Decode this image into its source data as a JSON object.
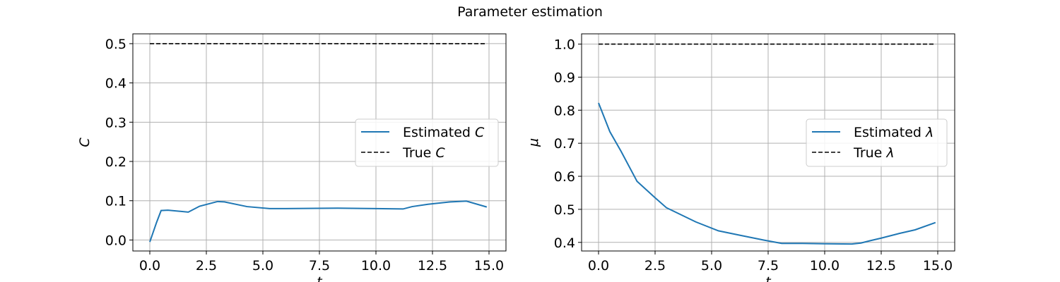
{
  "title": "Parameter estimation",
  "colors": {
    "estimated": "#1f77b4",
    "true": "#000000",
    "grid": "#b0b0b0"
  },
  "chart_data": [
    {
      "type": "line",
      "xlabel": "t",
      "ylabel": "C",
      "xlim": [
        -0.75,
        15.75
      ],
      "ylim": [
        -0.028,
        0.525
      ],
      "xticks": [
        0.0,
        2.5,
        5.0,
        7.5,
        10.0,
        12.5,
        15.0
      ],
      "xtick_labels": [
        "0.0",
        "2.5",
        "5.0",
        "7.5",
        "10.0",
        "12.5",
        "15.0"
      ],
      "yticks": [
        0.0,
        0.1,
        0.2,
        0.3,
        0.4,
        0.5
      ],
      "ytick_labels": [
        "0.0",
        "0.1",
        "0.2",
        "0.3",
        "0.4",
        "0.5"
      ],
      "grid": true,
      "legend_position": "center-right",
      "series": [
        {
          "name": "Estimated C",
          "legend_prefix": "Estimated ",
          "legend_symbol": "C",
          "style": "solid",
          "x": [
            0.0,
            0.3,
            0.5,
            0.8,
            1.7,
            2.2,
            3.0,
            3.3,
            4.3,
            5.3,
            6.0,
            8.3,
            10.0,
            11.2,
            11.6,
            12.3,
            13.3,
            14.0,
            14.9
          ],
          "y": [
            -0.005,
            0.045,
            0.075,
            0.076,
            0.071,
            0.086,
            0.098,
            0.097,
            0.085,
            0.08,
            0.08,
            0.081,
            0.08,
            0.079,
            0.085,
            0.091,
            0.097,
            0.099,
            0.084
          ]
        },
        {
          "name": "True C",
          "legend_prefix": "True ",
          "legend_symbol": "C",
          "style": "dashed",
          "x": [
            0.0,
            14.9
          ],
          "y": [
            0.5,
            0.5
          ]
        }
      ]
    },
    {
      "type": "line",
      "xlabel": "t",
      "ylabel": "μ",
      "xlim": [
        -0.75,
        15.75
      ],
      "ylim": [
        0.374,
        1.031
      ],
      "xticks": [
        0.0,
        2.5,
        5.0,
        7.5,
        10.0,
        12.5,
        15.0
      ],
      "xtick_labels": [
        "0.0",
        "2.5",
        "5.0",
        "7.5",
        "10.0",
        "12.5",
        "15.0"
      ],
      "yticks": [
        0.4,
        0.5,
        0.6,
        0.7,
        0.8,
        0.9,
        1.0
      ],
      "ytick_labels": [
        "0.4",
        "0.5",
        "0.6",
        "0.7",
        "0.8",
        "0.9",
        "1.0"
      ],
      "grid": true,
      "legend_position": "center-right",
      "series": [
        {
          "name": "Estimated λ",
          "legend_prefix": "Estimated ",
          "legend_symbol": "λ",
          "style": "solid",
          "x": [
            0.0,
            0.5,
            1.0,
            1.7,
            2.5,
            3.0,
            3.3,
            4.3,
            5.3,
            6.3,
            7.3,
            8.1,
            9.0,
            10.0,
            11.2,
            11.6,
            12.0,
            12.5,
            13.3,
            14.0,
            14.9
          ],
          "y": [
            0.822,
            0.735,
            0.675,
            0.585,
            0.535,
            0.505,
            0.495,
            0.462,
            0.435,
            0.421,
            0.407,
            0.397,
            0.397,
            0.396,
            0.395,
            0.398,
            0.405,
            0.413,
            0.427,
            0.438,
            0.46
          ]
        },
        {
          "name": "True λ",
          "legend_prefix": "True ",
          "legend_symbol": "λ",
          "style": "dashed",
          "x": [
            0.0,
            14.9
          ],
          "y": [
            1.0,
            1.0
          ]
        }
      ]
    }
  ]
}
